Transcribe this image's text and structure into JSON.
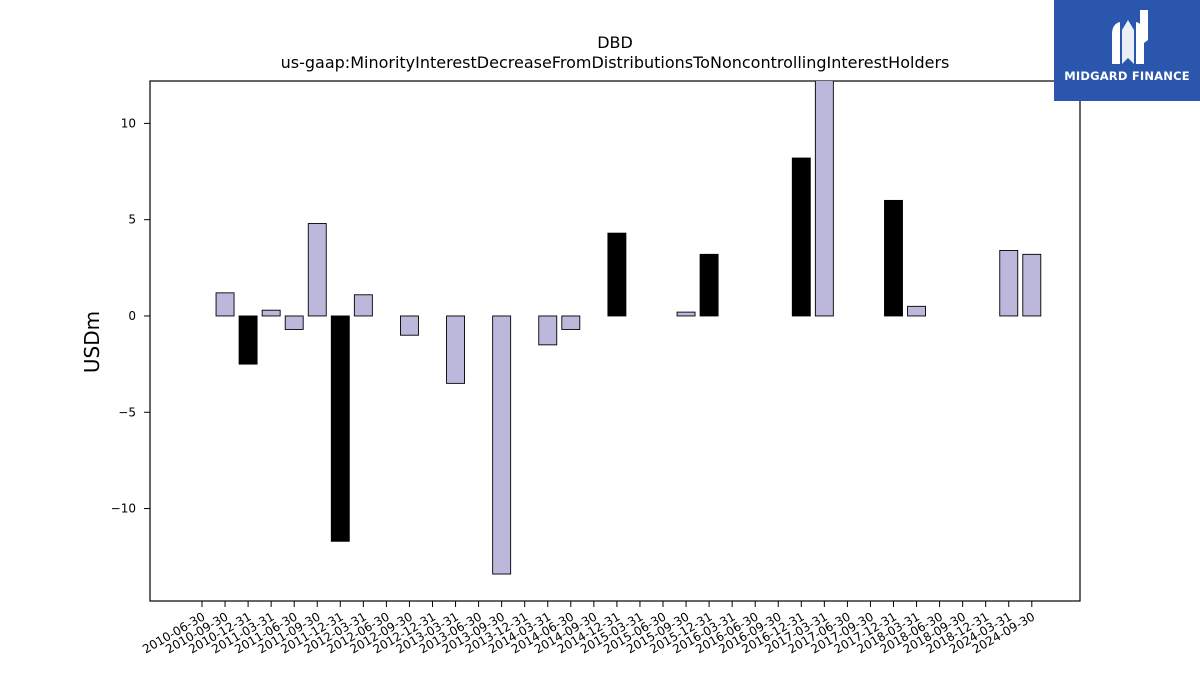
{
  "chart_data": {
    "type": "bar",
    "title": "DBD",
    "subtitle": "us-gaap:MinorityInterestDecreaseFromDistributionsToNoncontrollingInterestHolders",
    "xlabel": "",
    "ylabel": "USDm",
    "ylim": [
      -14.8,
      12.2
    ],
    "yticks": [
      -10,
      -5,
      0,
      5,
      10
    ],
    "ytick_labels": [
      "−10",
      "−5",
      "0",
      "5",
      "10"
    ],
    "grid": false,
    "colors": {
      "default": "#bcb8db",
      "highlight": "#000000"
    },
    "categories": [
      "2010-06-30",
      "2010-09-30",
      "2010-12-31",
      "2011-03-31",
      "2011-06-30",
      "2011-09-30",
      "2011-12-31",
      "2012-03-31",
      "2012-06-30",
      "2012-09-30",
      "2012-12-31",
      "2013-03-31",
      "2013-06-30",
      "2013-09-30",
      "2013-12-31",
      "2014-03-31",
      "2014-06-30",
      "2014-09-30",
      "2014-12-31",
      "2015-03-31",
      "2015-06-30",
      "2015-09-30",
      "2015-12-31",
      "2016-03-31",
      "2016-06-30",
      "2016-09-30",
      "2016-12-31",
      "2017-03-31",
      "2017-06-30",
      "2017-09-30",
      "2017-12-31",
      "2018-03-31",
      "2018-06-30",
      "2018-09-30",
      "2018-12-31",
      "2024-03-31",
      "2024-09-30"
    ],
    "values": [
      0,
      1.2,
      -2.5,
      0.3,
      -0.7,
      4.8,
      -11.7,
      1.1,
      0,
      -1.0,
      0,
      -3.5,
      0,
      -13.4,
      0,
      -1.5,
      -0.7,
      0,
      4.3,
      0,
      0,
      0.2,
      3.2,
      0,
      0,
      0,
      8.2,
      12.5,
      0,
      0,
      6.0,
      0.5,
      0,
      0,
      0,
      3.4,
      3.2
    ],
    "highlight": [
      false,
      false,
      true,
      false,
      false,
      false,
      true,
      false,
      false,
      false,
      false,
      false,
      false,
      false,
      false,
      false,
      false,
      false,
      true,
      false,
      false,
      false,
      true,
      false,
      false,
      false,
      true,
      false,
      false,
      false,
      true,
      false,
      false,
      false,
      false,
      false,
      false
    ]
  },
  "logo": {
    "text": "MIDGARD FINANCE",
    "background": "#2a56ad"
  }
}
